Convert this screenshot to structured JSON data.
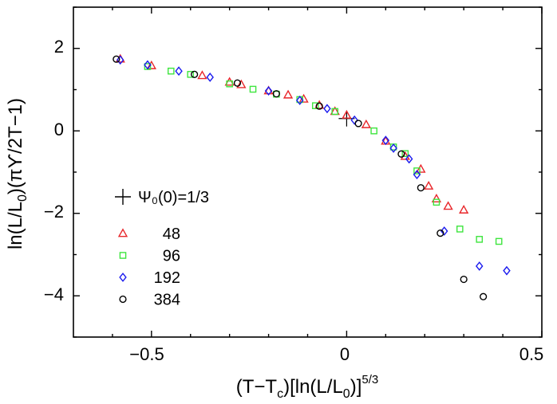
{
  "chart_data": {
    "type": "scatter",
    "title": "",
    "xlabel": "(T−Tc)[ln(L/L0)]^5/3",
    "ylabel": "ln(L/L0)(πΥ/2T−1)",
    "xlim": [
      -0.7,
      0.5
    ],
    "ylim": [
      -5.0,
      3.0
    ],
    "x_ticks": [
      -0.5,
      0,
      0.5
    ],
    "x_tick_labels": [
      "−0.5",
      "0",
      "0.5"
    ],
    "y_ticks": [
      -4,
      -2,
      0,
      2
    ],
    "y_tick_labels": [
      "−4",
      "−2",
      "0",
      "2"
    ],
    "grid": false,
    "legend_location": "lower-left",
    "reference_point": {
      "label": "Ψ₀(0)=1/3",
      "x": 0.0,
      "y": 0.3
    },
    "series": [
      {
        "name": "48",
        "marker": "triangle",
        "color": "#e8262a",
        "x": [
          -0.58,
          -0.5,
          -0.37,
          -0.3,
          -0.27,
          -0.2,
          -0.15,
          -0.11,
          -0.07,
          -0.03,
          0.0,
          0.05,
          0.1,
          0.15,
          0.19,
          0.21,
          0.23,
          0.26,
          0.3
        ],
        "y": [
          1.74,
          1.58,
          1.34,
          1.18,
          1.12,
          0.97,
          0.87,
          0.77,
          0.62,
          0.47,
          0.38,
          0.15,
          -0.25,
          -0.62,
          -0.93,
          -1.34,
          -1.65,
          -1.83,
          -1.92
        ]
      },
      {
        "name": "96",
        "marker": "square",
        "color": "#3ee53e",
        "x": [
          -0.51,
          -0.45,
          -0.4,
          -0.3,
          -0.24,
          -0.18,
          -0.12,
          -0.08,
          -0.03,
          0.07,
          0.12,
          0.15,
          0.18,
          0.23,
          0.29,
          0.34,
          0.39
        ],
        "y": [
          1.56,
          1.45,
          1.37,
          1.14,
          1.01,
          0.89,
          0.76,
          0.61,
          0.47,
          0.0,
          -0.39,
          -0.55,
          -0.97,
          -1.73,
          -2.38,
          -2.63,
          -2.68
        ]
      },
      {
        "name": "192",
        "marker": "diamond",
        "color": "#1a1aee",
        "x": [
          -0.58,
          -0.51,
          -0.43,
          -0.35,
          -0.2,
          -0.12,
          -0.05,
          0.02,
          0.1,
          0.12,
          0.16,
          0.18,
          0.25,
          0.34,
          0.41
        ],
        "y": [
          1.72,
          1.6,
          1.45,
          1.3,
          0.97,
          0.74,
          0.54,
          0.26,
          -0.23,
          -0.42,
          -0.68,
          -1.06,
          -2.43,
          -3.28,
          -3.39
        ]
      },
      {
        "name": "384",
        "marker": "circle",
        "color": "#000000",
        "x": [
          -0.59,
          -0.39,
          -0.28,
          -0.18,
          -0.07,
          0.03,
          0.14,
          0.19,
          0.24,
          0.3,
          0.35
        ],
        "y": [
          1.74,
          1.37,
          1.16,
          0.9,
          0.6,
          0.18,
          -0.56,
          -1.38,
          -2.48,
          -3.6,
          -4.02
        ]
      }
    ]
  }
}
